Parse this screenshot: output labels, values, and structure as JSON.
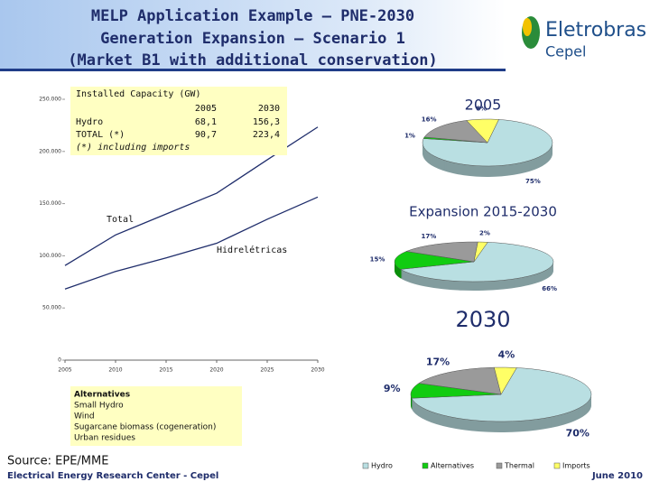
{
  "slide": {
    "title": [
      "MELP Application Example – PNE-2030",
      "Generation Expansion – Scenario 1",
      "(Market B1 with additional conservation)"
    ],
    "logo": {
      "name": "Eletrobras",
      "sub": "Cepel"
    },
    "installed_capacity": {
      "title": "Installed Capacity (GW)",
      "header": [
        "2005",
        "2030"
      ],
      "rows": [
        [
          "Hydro",
          "68,1",
          "156,3"
        ],
        [
          "TOTAL (*)",
          "90,7",
          "223,4"
        ]
      ],
      "note": "(*) including imports"
    },
    "alternatives": {
      "title": "Alternatives",
      "items": [
        "Small Hydro",
        "Wind",
        "Sugarcane biomass (cogeneration)",
        "Urban residues"
      ]
    },
    "source": "Source: EPE/MME",
    "footer_left": "Electrical Energy Research Center - Cepel",
    "footer_right": "June 2010"
  },
  "chart_data": [
    {
      "type": "line",
      "x": [
        2005,
        2010,
        2015,
        2020,
        2025,
        2030
      ],
      "xlim": [
        2005,
        2030
      ],
      "xticks": [
        2005,
        2010,
        2015,
        2020,
        2025,
        2030
      ],
      "ylim": [
        0,
        250000
      ],
      "yticks": [
        0,
        {
          "value": 50000,
          "label": "50.000"
        },
        {
          "value": 100000,
          "label": "100.000"
        },
        {
          "value": 150000,
          "label": "150.000"
        },
        {
          "value": 200000,
          "label": "200.000"
        },
        {
          "value": 250000,
          "label": "250.000"
        }
      ],
      "series": [
        {
          "name": "Total",
          "color": "#1f2d6b",
          "values": [
            90700,
            120000,
            140000,
            160000,
            192000,
            223400
          ]
        },
        {
          "name": "Hidrelétricas",
          "color": "#1f2d6b",
          "values": [
            68100,
            85000,
            98000,
            112000,
            135000,
            156300
          ]
        }
      ]
    },
    {
      "type": "pie",
      "categories": [
        "Hydro",
        "Alternatives",
        "Thermal",
        "Imports"
      ],
      "colors": [
        "#b9dfe2",
        "#11cc11",
        "#9a9a9a",
        "#ffff66"
      ],
      "pies": [
        {
          "title": "2005",
          "values": [
            75,
            1,
            16,
            8
          ],
          "value_labels": [
            "75%",
            "1%",
            "16%",
            "8%"
          ]
        },
        {
          "title": "Expansion 2015-2030",
          "values": [
            66,
            15,
            17,
            2
          ],
          "value_labels": [
            "66%",
            "15%",
            "17%",
            "2%"
          ]
        },
        {
          "title": "2030",
          "values": [
            70,
            9,
            17,
            4
          ],
          "value_labels": [
            "70%",
            "9%",
            "17%",
            "4%"
          ]
        }
      ]
    }
  ]
}
